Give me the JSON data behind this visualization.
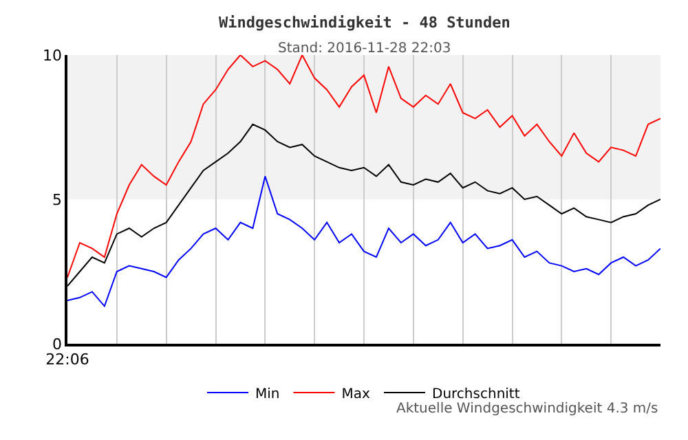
{
  "chart_data": {
    "type": "line",
    "title": "Windgeschwindigkeit - 48 Stunden",
    "subtitle": "Stand: 2016-11-28 22:03",
    "categories": [
      "22:06",
      null,
      null,
      null,
      null,
      null,
      null,
      null,
      null,
      null,
      null,
      null,
      null,
      null,
      null,
      null,
      null,
      null,
      null,
      null,
      null,
      null,
      null,
      null,
      null,
      null,
      null,
      null,
      null,
      null,
      null,
      null,
      null,
      null,
      null,
      null,
      null,
      null,
      null,
      null,
      null,
      null,
      null,
      null,
      null,
      null,
      null,
      null,
      null
    ],
    "series": [
      {
        "name": "Min",
        "color": "#0000ff",
        "values": [
          1.5,
          1.6,
          1.8,
          1.3,
          2.5,
          2.7,
          2.6,
          2.5,
          2.3,
          2.9,
          3.3,
          3.8,
          4.0,
          3.6,
          4.2,
          4.0,
          5.8,
          4.5,
          4.3,
          4.0,
          3.6,
          4.2,
          3.5,
          3.8,
          3.2,
          3.0,
          4.0,
          3.5,
          3.8,
          3.4,
          3.6,
          4.2,
          3.5,
          3.8,
          3.3,
          3.4,
          3.6,
          3.0,
          3.2,
          2.8,
          2.7,
          2.5,
          2.6,
          2.4,
          2.8,
          3.0,
          2.7,
          2.9,
          3.3
        ]
      },
      {
        "name": "Max",
        "color": "#ff0000",
        "values": [
          2.3,
          3.5,
          3.3,
          3.0,
          4.5,
          5.5,
          6.2,
          5.8,
          5.5,
          6.3,
          7.0,
          8.3,
          8.8,
          9.5,
          10,
          9.6,
          9.8,
          9.5,
          9.0,
          10,
          9.2,
          8.8,
          8.2,
          8.9,
          9.3,
          8.0,
          9.6,
          8.5,
          8.2,
          8.6,
          8.3,
          9.0,
          8.0,
          7.8,
          8.1,
          7.5,
          7.9,
          7.2,
          7.6,
          7.0,
          6.5,
          7.3,
          6.6,
          6.3,
          6.8,
          6.7,
          6.5,
          7.6,
          7.8
        ]
      },
      {
        "name": "Durchschnitt",
        "color": "#000000",
        "values": [
          2.0,
          2.5,
          3.0,
          2.8,
          3.8,
          4.0,
          3.7,
          4.0,
          4.2,
          4.8,
          5.4,
          6.0,
          6.3,
          6.6,
          7.0,
          7.6,
          7.4,
          7.0,
          6.8,
          6.9,
          6.5,
          6.3,
          6.1,
          6.0,
          6.1,
          5.8,
          6.2,
          5.6,
          5.5,
          5.7,
          5.6,
          5.9,
          5.4,
          5.6,
          5.3,
          5.2,
          5.4,
          5.0,
          5.1,
          4.8,
          4.5,
          4.7,
          4.4,
          4.3,
          4.2,
          4.4,
          4.5,
          4.8,
          5.0
        ]
      }
    ],
    "ylim": [
      0,
      10
    ],
    "yticks": [
      0,
      5,
      10
    ],
    "bands": [
      {
        "axis": "y",
        "from": 5,
        "to": 10,
        "color": "#f2f2f2"
      }
    ],
    "grid": "x",
    "legend": "bottom",
    "annotations": [
      "Aktuelle Windgeschwindigkeit 4.3 m/s"
    ]
  }
}
